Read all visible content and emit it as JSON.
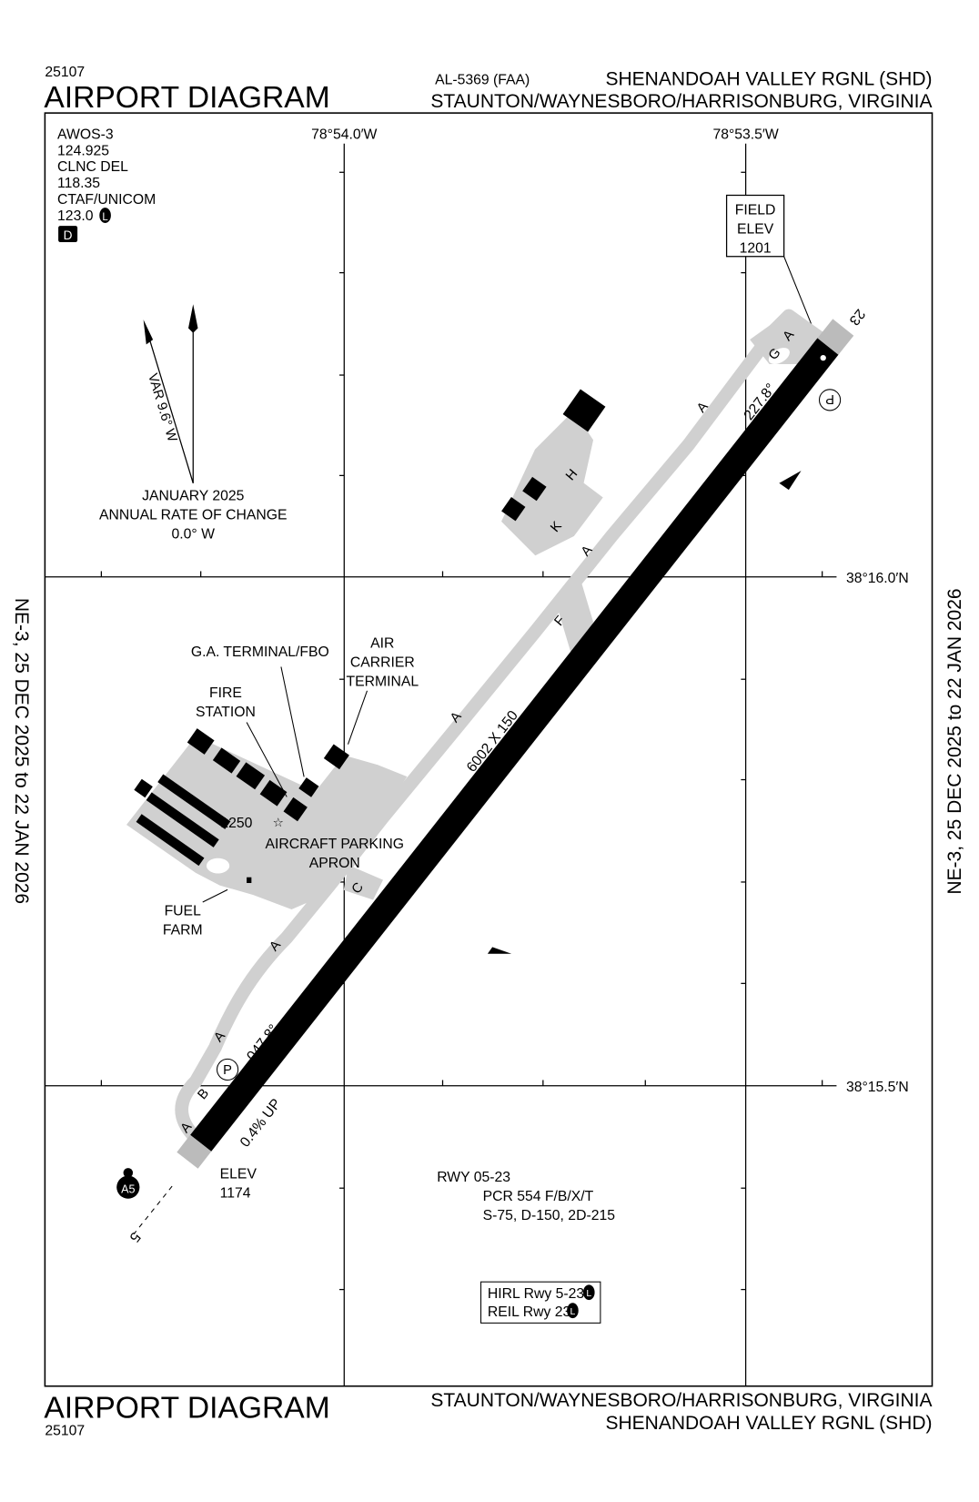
{
  "header": {
    "chart_number": "25107",
    "title": "AIRPORT DIAGRAM",
    "procedure_id": "AL-5369 (FAA)",
    "airport_name": "SHENANDOAH VALLEY RGNL (SHD)",
    "city_state": "STAUNTON/WAYNESBORO/HARRISONBURG, VIRGINIA"
  },
  "footer": {
    "title": "AIRPORT DIAGRAM",
    "chart_number": "25107",
    "city_state": "STAUNTON/WAYNESBORO/HARRISONBURG, VIRGINIA",
    "airport_name": "SHENANDOAH VALLEY RGNL (SHD)"
  },
  "side_labels": {
    "left": "NE-3,  25 DEC 2025  to  22 JAN 2026",
    "right": "NE-3,  25 DEC 2025  to  22 JAN 2026"
  },
  "coordinates": {
    "lon1": "78°54.0′W",
    "lon2": "78°53.5′W",
    "lat1": "38°16.0′N",
    "lat2": "38°15.5′N"
  },
  "comms": {
    "lines": [
      "AWOS-3",
      "124.925",
      "CLNC DEL",
      "118.35",
      "CTAF/UNICOM",
      "123.0"
    ],
    "lighting_badge": "L",
    "d_badge": "D"
  },
  "magnetic": {
    "variation": "VAR 9.6° W",
    "epoch": "JANUARY 2025",
    "rate_label": "ANNUAL RATE OF CHANGE",
    "rate": "0.0° W"
  },
  "field_elev": {
    "line1": "FIELD",
    "line2": "ELEV",
    "value": "1201"
  },
  "runway": {
    "dimensions": "6002 X 150",
    "heading_05": "047.8°",
    "heading_23": "227.8°",
    "gradient": "0.4% UP",
    "end_05": "5",
    "end_23": "23",
    "elev_label": "ELEV",
    "elev_05": "1174",
    "papi": "P"
  },
  "taxiways": [
    "A",
    "A",
    "A",
    "A",
    "A",
    "A",
    "A",
    "B",
    "C",
    "F",
    "G",
    "H",
    "K"
  ],
  "facilities": {
    "ga_terminal": "G.A. TERMINAL/FBO",
    "air_carrier": [
      "AIR",
      "CARRIER",
      "TERMINAL"
    ],
    "fire_station": [
      "FIRE",
      "STATION"
    ],
    "fuel_farm": [
      "FUEL",
      "FARM"
    ],
    "apron": [
      "AIRCRAFT PARKING",
      "APRON"
    ],
    "tower_elev": "1250",
    "approach_light": "A5"
  },
  "runway_data": {
    "title": "RWY 05-23",
    "pcr": "PCR 554 F/B/X/T",
    "strength": "S-75, D-150, 2D-215"
  },
  "lighting_box": {
    "hirl": "HIRL Rwy 5-23",
    "reil": "REIL Rwy 23",
    "badge": "L"
  },
  "colors": {
    "taxiway": "#d0d0d0",
    "runway": "#000000",
    "ink": "#000000"
  }
}
